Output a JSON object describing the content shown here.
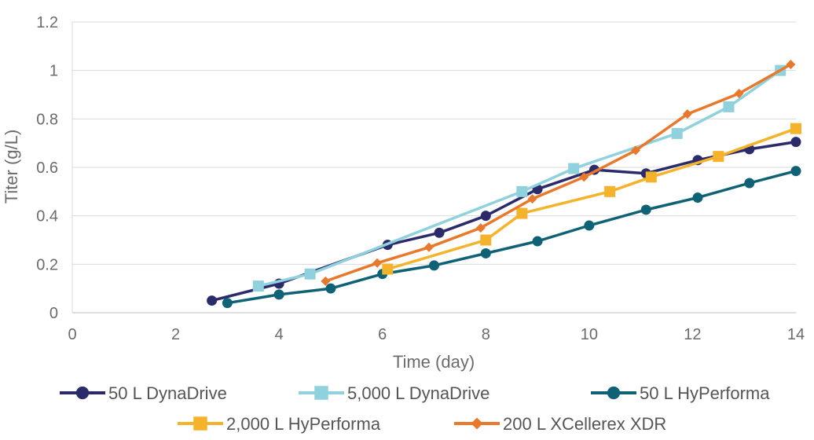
{
  "chart_data": {
    "type": "line",
    "title": "",
    "xlabel": "Time (day)",
    "ylabel": "Titer (g/L)",
    "xlim": [
      0,
      14
    ],
    "ylim": [
      0,
      1.2
    ],
    "x_ticks": [
      0,
      2,
      4,
      6,
      8,
      10,
      12,
      14
    ],
    "y_ticks": [
      0,
      0.2,
      0.4,
      0.6,
      0.8,
      1,
      1.2
    ],
    "x_tick_labels": [
      "0",
      "2",
      "4",
      "6",
      "8",
      "10",
      "12",
      "14"
    ],
    "y_tick_labels": [
      "0",
      "0.2",
      "0.4",
      "0.6",
      "0.8",
      "1",
      "1.2"
    ],
    "grid": "horizontal",
    "legend_position": "bottom",
    "series": [
      {
        "name": "50 L DynaDrive",
        "color": "#2b2a6b",
        "marker": "circle",
        "x": [
          2.7,
          4.0,
          6.1,
          7.1,
          8.0,
          9.0,
          10.1,
          11.1,
          12.1,
          13.1,
          14.0
        ],
        "y": [
          0.05,
          0.12,
          0.28,
          0.33,
          0.4,
          0.51,
          0.59,
          0.575,
          0.63,
          0.675,
          0.705
        ]
      },
      {
        "name": "5,000 L DynaDrive",
        "color": "#8fd1dc",
        "marker": "square",
        "x": [
          3.6,
          4.6,
          8.7,
          9.7,
          11.7,
          12.7,
          13.7
        ],
        "y": [
          0.11,
          0.16,
          0.5,
          0.595,
          0.74,
          0.85,
          1.0
        ]
      },
      {
        "name": "50 L HyPerforma",
        "color": "#0f6275",
        "marker": "circle",
        "x": [
          3.0,
          4.0,
          5.0,
          6.0,
          7.0,
          8.0,
          9.0,
          10.0,
          11.1,
          12.1,
          13.1,
          14.0
        ],
        "y": [
          0.04,
          0.075,
          0.1,
          0.16,
          0.195,
          0.245,
          0.295,
          0.36,
          0.425,
          0.475,
          0.535,
          0.585
        ]
      },
      {
        "name": "2,000 L HyPerforma",
        "color": "#f5b32c",
        "marker": "square",
        "x": [
          6.1,
          8.0,
          8.7,
          10.4,
          11.2,
          12.5,
          14.0
        ],
        "y": [
          0.18,
          0.3,
          0.41,
          0.5,
          0.56,
          0.645,
          0.76
        ]
      },
      {
        "name": "200 L XCellerex XDR",
        "color": "#e8782b",
        "marker": "diamond",
        "x": [
          4.9,
          5.9,
          6.9,
          7.9,
          8.9,
          9.9,
          10.9,
          11.9,
          12.9,
          13.9
        ],
        "y": [
          0.13,
          0.205,
          0.27,
          0.35,
          0.47,
          0.56,
          0.67,
          0.82,
          0.905,
          1.025
        ]
      }
    ]
  }
}
